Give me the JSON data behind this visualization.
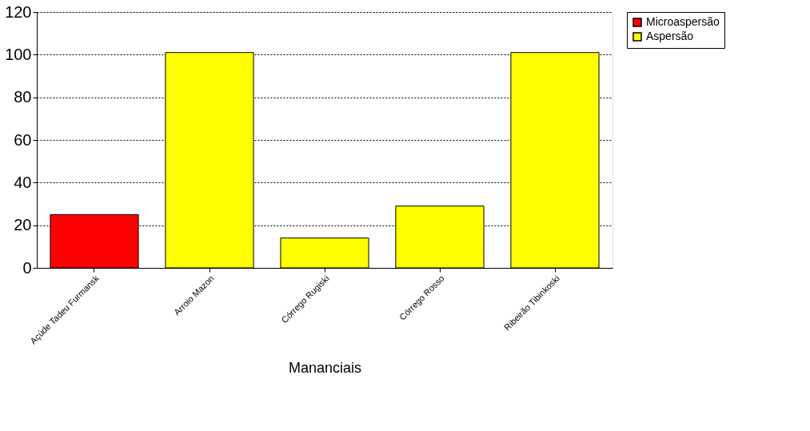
{
  "chart_data": {
    "type": "bar",
    "xlabel": "Mananciais",
    "categories": [
      "Açúde Tadeu Furmansk",
      "Arroio Mazon",
      "Córrego Rugiski",
      "Córrego Rosso",
      "Ribeirão Tibinkoski"
    ],
    "series": [
      {
        "name": "Microaspersão",
        "color": "#ff0000",
        "values": [
          25,
          null,
          null,
          null,
          null
        ]
      },
      {
        "name": "Aspersão",
        "color": "#ffff00",
        "values": [
          null,
          101,
          14,
          29,
          101
        ]
      }
    ],
    "ylim": [
      0,
      120
    ],
    "yticks": [
      0,
      20,
      40,
      60,
      80,
      100,
      120
    ],
    "grid": "y",
    "legend": "right"
  }
}
